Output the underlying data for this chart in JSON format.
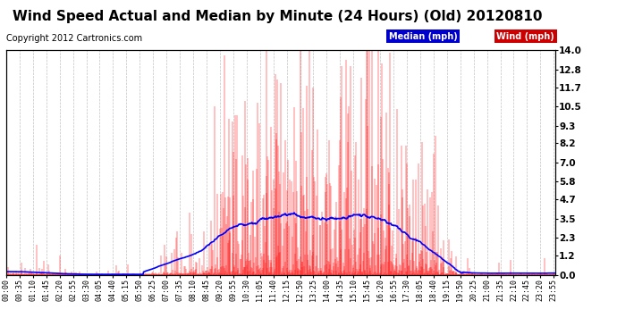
{
  "title": "Wind Speed Actual and Median by Minute (24 Hours) (Old) 20120810",
  "copyright": "Copyright 2012 Cartronics.com",
  "ylabel_right_ticks": [
    0.0,
    1.2,
    2.3,
    3.5,
    4.7,
    5.8,
    7.0,
    8.2,
    9.3,
    10.5,
    11.7,
    12.8,
    14.0
  ],
  "wind_color": "#ff0000",
  "median_color": "#0000ff",
  "background_color": "#ffffff",
  "plot_bg_color": "#ffffff",
  "legend_wind_bg": "#cc0000",
  "legend_median_bg": "#0000cc",
  "title_fontsize": 11,
  "copyright_fontsize": 7,
  "tick_label_fontsize": 6,
  "minutes_per_day": 1440,
  "x_label_interval": 35,
  "seed": 12345
}
